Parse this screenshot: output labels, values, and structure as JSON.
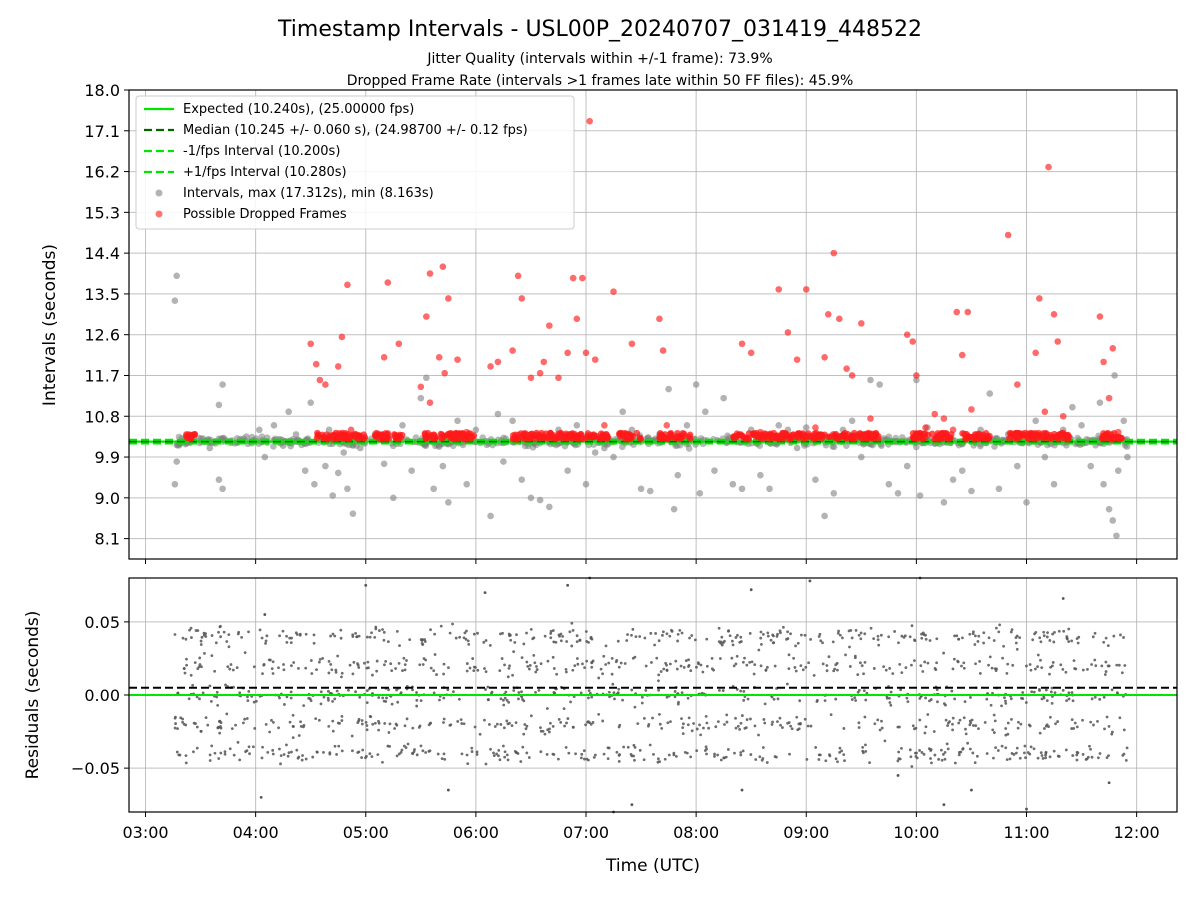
{
  "chart_data": [
    {
      "type": "scatter",
      "title": "Timestamp Intervals - USL00P_20240707_031419_448522",
      "subtitles": [
        "Jitter Quality (intervals within +/-1 frame): 73.9%",
        "Dropped Frame Rate (intervals >1 frames late within 50 FF files): 45.9%"
      ],
      "ylabel": "Intervals (seconds)",
      "xlabel": "",
      "xlim": [
        "02:51",
        "12:22"
      ],
      "ylim": [
        7.65,
        18.0
      ],
      "yticks": [
        "18.0",
        "17.1",
        "16.2",
        "15.3",
        "14.4",
        "13.5",
        "12.6",
        "11.7",
        "10.8",
        "9.9",
        "9.0",
        "8.1"
      ],
      "grid": true,
      "legend_position": "upper-left",
      "lines": [
        {
          "name": "Expected (10.240s), (25.00000 fps)",
          "y": 10.24,
          "style": "solid",
          "color": "#00e600"
        },
        {
          "name": "Median (10.245 +/- 0.060 s), (24.98700 +/- 0.12 fps)",
          "y": 10.245,
          "style": "dashed",
          "color": "#006400"
        },
        {
          "name": "-1/fps Interval (10.200s)",
          "y": 10.2,
          "style": "dashed",
          "color": "#00e600"
        },
        {
          "name": "+1/fps Interval (10.280s)",
          "y": 10.28,
          "style": "dashed",
          "color": "#00e600"
        }
      ],
      "series": [
        {
          "name": "Intervals, max (17.312s), min (8.163s)",
          "color": "#808080",
          "points": [
            [
              "03:17",
              13.9
            ],
            [
              "03:16",
              13.35
            ],
            [
              "03:17",
              9.8
            ],
            [
              "03:16",
              9.3
            ],
            [
              "03:42",
              11.5
            ],
            [
              "03:40",
              11.05
            ],
            [
              "03:40",
              9.4
            ],
            [
              "03:42",
              9.2
            ],
            [
              "03:25",
              10.3
            ],
            [
              "03:35",
              10.1
            ],
            [
              "03:55",
              10.35
            ],
            [
              "04:02",
              10.5
            ],
            [
              "04:05",
              9.9
            ],
            [
              "04:10",
              10.6
            ],
            [
              "04:15",
              10.15
            ],
            [
              "04:18",
              10.9
            ],
            [
              "04:22",
              10.4
            ],
            [
              "04:27",
              9.6
            ],
            [
              "04:30",
              11.1
            ],
            [
              "04:32",
              9.3
            ],
            [
              "04:38",
              9.7
            ],
            [
              "04:40",
              10.5
            ],
            [
              "04:42",
              9.05
            ],
            [
              "04:45",
              9.55
            ],
            [
              "04:48",
              10.0
            ],
            [
              "04:50",
              9.2
            ],
            [
              "04:53",
              8.65
            ],
            [
              "04:57",
              10.1
            ],
            [
              "05:05",
              10.4
            ],
            [
              "05:10",
              9.75
            ],
            [
              "05:15",
              9.0
            ],
            [
              "05:20",
              10.6
            ],
            [
              "05:25",
              9.6
            ],
            [
              "05:30",
              11.2
            ],
            [
              "05:33",
              11.65
            ],
            [
              "05:37",
              9.2
            ],
            [
              "05:42",
              9.7
            ],
            [
              "05:45",
              8.9
            ],
            [
              "05:50",
              10.7
            ],
            [
              "05:55",
              9.3
            ],
            [
              "06:00",
              10.5
            ],
            [
              "06:08",
              8.6
            ],
            [
              "06:12",
              10.85
            ],
            [
              "06:15",
              9.8
            ],
            [
              "06:20",
              10.7
            ],
            [
              "06:25",
              9.4
            ],
            [
              "06:30",
              9.0
            ],
            [
              "06:35",
              8.95
            ],
            [
              "06:40",
              8.8
            ],
            [
              "06:45",
              10.5
            ],
            [
              "06:50",
              9.6
            ],
            [
              "06:55",
              10.6
            ],
            [
              "07:00",
              9.3
            ],
            [
              "07:05",
              10.0
            ],
            [
              "07:10",
              10.1
            ],
            [
              "07:15",
              9.9
            ],
            [
              "07:20",
              10.9
            ],
            [
              "07:25",
              10.5
            ],
            [
              "07:30",
              9.2
            ],
            [
              "07:35",
              9.15
            ],
            [
              "07:40",
              10.4
            ],
            [
              "07:45",
              11.4
            ],
            [
              "07:48",
              8.75
            ],
            [
              "07:50",
              9.5
            ],
            [
              "07:55",
              10.6
            ],
            [
              "08:00",
              11.5
            ],
            [
              "08:02",
              9.1
            ],
            [
              "08:05",
              10.9
            ],
            [
              "08:10",
              9.6
            ],
            [
              "08:15",
              11.2
            ],
            [
              "08:20",
              9.3
            ],
            [
              "08:25",
              9.2
            ],
            [
              "08:30",
              10.5
            ],
            [
              "08:35",
              9.5
            ],
            [
              "08:40",
              9.2
            ],
            [
              "08:45",
              10.6
            ],
            [
              "08:50",
              10.5
            ],
            [
              "08:55",
              10.1
            ],
            [
              "09:00",
              10.55
            ],
            [
              "09:05",
              9.4
            ],
            [
              "09:10",
              8.6
            ],
            [
              "09:15",
              9.1
            ],
            [
              "09:20",
              10.5
            ],
            [
              "09:25",
              10.7
            ],
            [
              "09:30",
              9.9
            ],
            [
              "09:35",
              11.6
            ],
            [
              "09:40",
              11.5
            ],
            [
              "09:45",
              9.3
            ],
            [
              "09:50",
              9.1
            ],
            [
              "09:55",
              9.7
            ],
            [
              "10:00",
              11.6
            ],
            [
              "10:02",
              9.05
            ],
            [
              "10:06",
              10.55
            ],
            [
              "10:10",
              10.2
            ],
            [
              "10:15",
              8.9
            ],
            [
              "10:20",
              9.4
            ],
            [
              "10:25",
              9.6
            ],
            [
              "10:30",
              9.15
            ],
            [
              "10:35",
              10.5
            ],
            [
              "10:40",
              11.3
            ],
            [
              "10:45",
              9.2
            ],
            [
              "10:50",
              10.4
            ],
            [
              "10:55",
              9.7
            ],
            [
              "11:00",
              8.9
            ],
            [
              "11:05",
              10.7
            ],
            [
              "11:10",
              9.9
            ],
            [
              "11:15",
              9.3
            ],
            [
              "11:20",
              10.5
            ],
            [
              "11:25",
              11.0
            ],
            [
              "11:30",
              10.6
            ],
            [
              "11:35",
              9.7
            ],
            [
              "11:40",
              11.1
            ],
            [
              "11:42",
              9.3
            ],
            [
              "11:45",
              8.75
            ],
            [
              "11:47",
              8.5
            ],
            [
              "11:49",
              8.163
            ],
            [
              "11:50",
              9.6
            ],
            [
              "11:53",
              10.7
            ],
            [
              "11:55",
              9.9
            ],
            [
              "11:48",
              11.7
            ]
          ]
        },
        {
          "name": "Possible Dropped Frames",
          "color": "#ff1a1a",
          "points": [
            [
              "04:30",
              12.4
            ],
            [
              "04:33",
              11.95
            ],
            [
              "04:35",
              11.6
            ],
            [
              "04:38",
              11.5
            ],
            [
              "04:45",
              11.9
            ],
            [
              "04:47",
              12.55
            ],
            [
              "04:50",
              13.7
            ],
            [
              "04:52",
              10.5
            ],
            [
              "05:10",
              12.1
            ],
            [
              "05:12",
              13.75
            ],
            [
              "05:18",
              12.4
            ],
            [
              "05:30",
              11.45
            ],
            [
              "05:33",
              13.0
            ],
            [
              "05:35",
              11.1
            ],
            [
              "05:40",
              12.1
            ],
            [
              "05:43",
              11.75
            ],
            [
              "05:42",
              14.1
            ],
            [
              "05:45",
              13.4
            ],
            [
              "05:35",
              13.95
            ],
            [
              "05:50",
              12.05
            ],
            [
              "05:55",
              10.45
            ],
            [
              "06:08",
              11.9
            ],
            [
              "06:12",
              12.0
            ],
            [
              "06:20",
              12.25
            ],
            [
              "06:23",
              13.9
            ],
            [
              "06:25",
              13.4
            ],
            [
              "06:30",
              11.65
            ],
            [
              "06:35",
              11.75
            ],
            [
              "06:37",
              12.0
            ],
            [
              "06:40",
              12.8
            ],
            [
              "06:45",
              11.65
            ],
            [
              "06:50",
              12.2
            ],
            [
              "06:53",
              13.85
            ],
            [
              "06:55",
              12.95
            ],
            [
              "06:58",
              13.85
            ],
            [
              "07:00",
              12.2
            ],
            [
              "07:02",
              17.312
            ],
            [
              "07:05",
              12.05
            ],
            [
              "07:10",
              10.6
            ],
            [
              "07:15",
              13.55
            ],
            [
              "07:25",
              12.4
            ],
            [
              "07:40",
              12.95
            ],
            [
              "07:42",
              12.25
            ],
            [
              "07:44",
              10.6
            ],
            [
              "08:25",
              12.4
            ],
            [
              "08:30",
              12.2
            ],
            [
              "08:35",
              10.45
            ],
            [
              "08:45",
              13.6
            ],
            [
              "08:50",
              12.65
            ],
            [
              "08:55",
              12.05
            ],
            [
              "09:00",
              13.6
            ],
            [
              "09:05",
              10.55
            ],
            [
              "09:10",
              12.1
            ],
            [
              "09:12",
              13.05
            ],
            [
              "09:15",
              14.4
            ],
            [
              "09:18",
              12.95
            ],
            [
              "09:22",
              11.85
            ],
            [
              "09:25",
              11.7
            ],
            [
              "09:30",
              12.85
            ],
            [
              "09:35",
              10.75
            ],
            [
              "09:55",
              12.6
            ],
            [
              "09:58",
              12.45
            ],
            [
              "10:00",
              11.7
            ],
            [
              "10:05",
              10.55
            ],
            [
              "10:10",
              10.85
            ],
            [
              "10:15",
              10.75
            ],
            [
              "10:20",
              10.5
            ],
            [
              "10:22",
              13.1
            ],
            [
              "10:25",
              12.15
            ],
            [
              "10:28",
              13.1
            ],
            [
              "10:30",
              10.95
            ],
            [
              "10:32",
              10.4
            ],
            [
              "10:50",
              14.8
            ],
            [
              "10:55",
              11.5
            ],
            [
              "11:05",
              12.2
            ],
            [
              "11:07",
              13.4
            ],
            [
              "11:10",
              10.9
            ],
            [
              "11:12",
              16.3
            ],
            [
              "11:15",
              13.05
            ],
            [
              "11:17",
              12.45
            ],
            [
              "11:20",
              10.8
            ],
            [
              "11:40",
              13.0
            ],
            [
              "11:42",
              12.0
            ],
            [
              "11:45",
              11.2
            ],
            [
              "11:47",
              12.3
            ],
            [
              "11:50",
              10.45
            ]
          ]
        }
      ]
    },
    {
      "type": "scatter",
      "title": "",
      "ylabel": "Residuals (seconds)",
      "xlabel": "Time (UTC)",
      "xlim": [
        "02:51",
        "12:22"
      ],
      "ylim": [
        -0.08,
        0.08
      ],
      "yticks": [
        "0.05",
        "0.00",
        "−0.05"
      ],
      "xticks": [
        "03:00",
        "04:00",
        "05:00",
        "06:00",
        "07:00",
        "08:00",
        "09:00",
        "10:00",
        "11:00",
        "12:00"
      ],
      "grid": true,
      "lines": [
        {
          "y": 0.0,
          "style": "solid",
          "color": "#00e600"
        },
        {
          "y": 0.005,
          "style": "dashed",
          "color": "#000000"
        }
      ],
      "series": [
        {
          "color": "#555555",
          "x_range": [
            "03:16",
            "11:55"
          ],
          "bands": [
            0.04,
            0.02,
            0.0,
            -0.02,
            -0.04
          ],
          "spread": 0.012,
          "outliers": [
            [
              "04:03",
              -0.07
            ],
            [
              "04:05",
              0.055
            ],
            [
              "05:00",
              0.075
            ],
            [
              "05:45",
              -0.065
            ],
            [
              "06:05",
              0.07
            ],
            [
              "06:50",
              0.075
            ],
            [
              "07:02",
              0.08
            ],
            [
              "07:15",
              -0.08
            ],
            [
              "07:25",
              -0.075
            ],
            [
              "08:25",
              -0.065
            ],
            [
              "08:30",
              0.072
            ],
            [
              "09:02",
              0.078
            ],
            [
              "09:50",
              -0.055
            ],
            [
              "10:02",
              0.08
            ],
            [
              "10:15",
              -0.075
            ],
            [
              "10:30",
              -0.065
            ],
            [
              "11:00",
              -0.078
            ],
            [
              "11:20",
              0.066
            ],
            [
              "11:45",
              -0.06
            ]
          ]
        }
      ]
    }
  ]
}
